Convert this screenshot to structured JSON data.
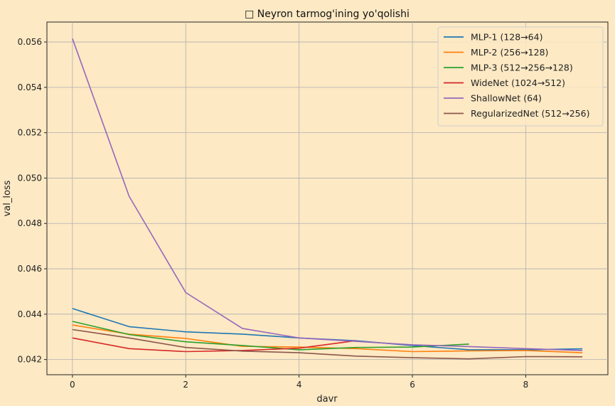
{
  "chart_data": {
    "type": "line",
    "title": "□ Neyron tarmog'ining yo'qolishi",
    "xlabel": "davr",
    "ylabel": "val_loss",
    "xlim": [
      -0.45,
      9.45
    ],
    "ylim": [
      0.04133,
      0.05688
    ],
    "xticks": [
      0,
      2,
      4,
      6,
      8
    ],
    "yticks": [
      0.042,
      0.044,
      0.046,
      0.048,
      0.05,
      0.052,
      0.054,
      0.056
    ],
    "grid": true,
    "legend_position": "top-right",
    "series": [
      {
        "name": "MLP-1 (128→64)",
        "color": "#1f77b4",
        "x": [
          0,
          1,
          2,
          3,
          4,
          5,
          6,
          7,
          8,
          9
        ],
        "y": [
          0.04425,
          0.04345,
          0.04322,
          0.04312,
          0.04295,
          0.04283,
          0.04262,
          0.04243,
          0.04243,
          0.04247
        ]
      },
      {
        "name": "MLP-2 (256→128)",
        "color": "#ff7f0e",
        "x": [
          0,
          1,
          2,
          3,
          4,
          5,
          6,
          7,
          8,
          9
        ],
        "y": [
          0.04352,
          0.04312,
          0.04293,
          0.04258,
          0.04255,
          0.04248,
          0.04235,
          0.04238,
          0.0424,
          0.0423
        ]
      },
      {
        "name": "MLP-3 (512→256→128)",
        "color": "#2ca02c",
        "x": [
          0,
          1,
          2,
          3,
          4,
          5,
          6,
          7
        ],
        "y": [
          0.04368,
          0.0431,
          0.04278,
          0.04262,
          0.04243,
          0.04253,
          0.04255,
          0.04268
        ]
      },
      {
        "name": "WideNet (1024→512)",
        "color": "#d62728",
        "x": [
          0,
          1,
          2,
          3,
          4,
          5
        ],
        "y": [
          0.04295,
          0.04248,
          0.04235,
          0.0424,
          0.0425,
          0.04283
        ]
      },
      {
        "name": "ShallowNet (64)",
        "color": "#9467bd",
        "x": [
          0,
          1,
          2,
          3,
          4,
          5,
          6,
          7,
          8,
          9
        ],
        "y": [
          0.05615,
          0.0492,
          0.04495,
          0.04337,
          0.04295,
          0.0428,
          0.04265,
          0.04257,
          0.04248,
          0.0424
        ]
      },
      {
        "name": "RegularizedNet (512→256)",
        "color": "#8c564b",
        "x": [
          0,
          1,
          2,
          3,
          4,
          5,
          6,
          7,
          8,
          9
        ],
        "y": [
          0.04332,
          0.04295,
          0.04253,
          0.04237,
          0.0423,
          0.04215,
          0.04208,
          0.04203,
          0.04213,
          0.04212
        ]
      }
    ]
  }
}
